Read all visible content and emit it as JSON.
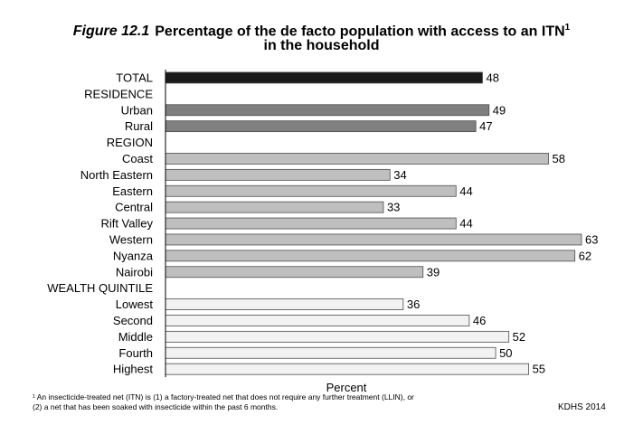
{
  "title": {
    "figure_label": "Figure 12.1",
    "line1": "Percentage of the de facto population with access to an ITN",
    "superscript": "1",
    "line2": "in the household"
  },
  "chart_data": {
    "type": "bar",
    "orientation": "horizontal",
    "categories": [
      "TOTAL",
      "RESIDENCE",
      "Urban",
      "Rural",
      "REGION",
      "Coast",
      "North Eastern",
      "Eastern",
      "Central",
      "Rift Valley",
      "Western",
      "Nyanza",
      "Nairobi",
      "WEALTH QUINTILE",
      "Lowest",
      "Second",
      "Middle",
      "Fourth",
      "Highest"
    ],
    "values": [
      48,
      null,
      49,
      47,
      null,
      58,
      34,
      44,
      33,
      44,
      63,
      62,
      39,
      null,
      36,
      46,
      52,
      50,
      55
    ],
    "xlabel": "Percent",
    "ylabel": "",
    "xlim": [
      0,
      63
    ],
    "groups": [
      {
        "name": "TOTAL",
        "color": "#1a1a1a"
      },
      {
        "name": "RESIDENCE",
        "color": "#7f7f7f"
      },
      {
        "name": "REGION",
        "color": "#bfbfbf"
      },
      {
        "name": "WEALTH QUINTILE",
        "color": "#f2f2f2"
      }
    ],
    "grid": false,
    "legend": "none"
  },
  "footnote": {
    "line1": "¹ An insecticide-treated net (ITN) is (1) a factory-treated net that does not require any further treatment (LLIN), or",
    "line2": "(2) a net that has been soaked with insecticide within the past 6 months."
  },
  "source": "KDHS 2014"
}
